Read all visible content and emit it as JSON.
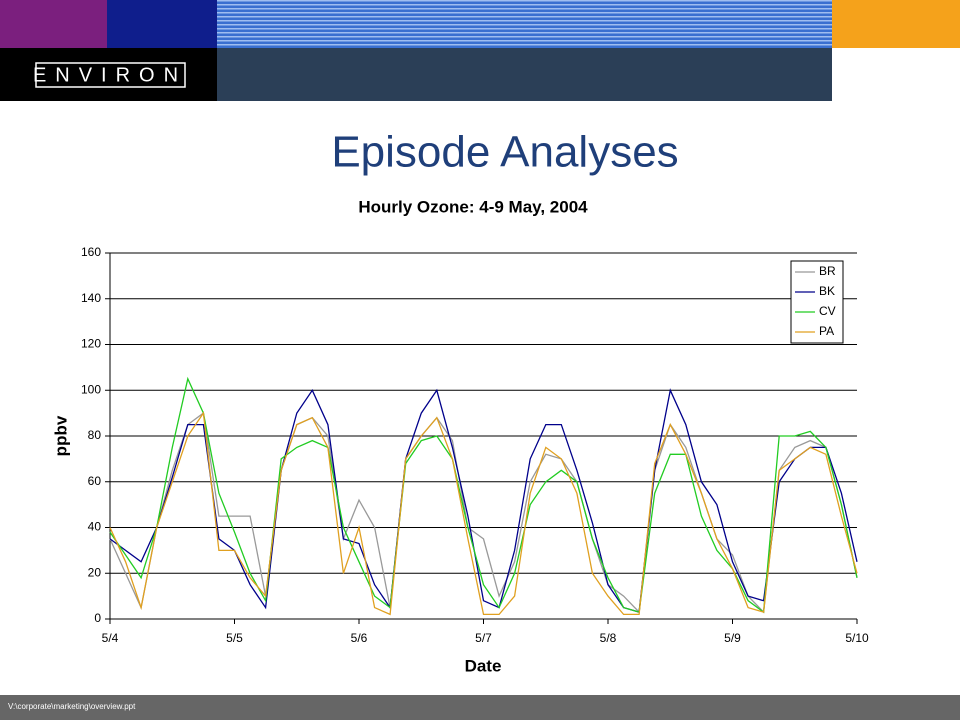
{
  "header": {
    "logo": "ENVIRON"
  },
  "slide_title": "Episode Analyses",
  "footer": "V:\\corporate\\marketing\\overview.ppt",
  "chart_data": {
    "type": "line",
    "title": "Hourly Ozone: 4-9 May, 2004",
    "x_label": "Date",
    "y_label": "ppbv",
    "x": [
      0,
      3,
      6,
      9,
      12,
      15,
      18,
      21,
      24,
      27,
      30,
      33,
      36,
      39,
      42,
      45,
      48,
      51,
      54,
      57,
      60,
      63,
      66,
      69,
      72,
      75,
      78,
      81,
      84,
      87,
      90,
      93,
      96,
      99,
      102,
      105,
      108,
      111,
      114,
      117,
      120,
      123,
      126,
      129,
      132,
      135,
      138,
      141,
      144
    ],
    "series": [
      {
        "name": "BR",
        "color": "#999999",
        "values": [
          35,
          20,
          5,
          40,
          65,
          85,
          90,
          45,
          45,
          45,
          10,
          65,
          85,
          88,
          80,
          35,
          52,
          40,
          5,
          70,
          80,
          88,
          78,
          40,
          35,
          10,
          25,
          60,
          72,
          70,
          60,
          35,
          15,
          10,
          3,
          65,
          85,
          75,
          55,
          35,
          28,
          10,
          3,
          65,
          75,
          78,
          75,
          50,
          18
        ]
      },
      {
        "name": "BK",
        "color": "#00008b",
        "values": [
          35,
          30,
          25,
          40,
          62,
          85,
          85,
          35,
          30,
          15,
          5,
          65,
          90,
          100,
          85,
          35,
          33,
          15,
          5,
          70,
          90,
          100,
          75,
          45,
          8,
          5,
          30,
          70,
          85,
          85,
          65,
          42,
          15,
          5,
          3,
          65,
          100,
          85,
          60,
          50,
          25,
          10,
          8,
          60,
          70,
          75,
          75,
          55,
          25
        ]
      },
      {
        "name": "CV",
        "color": "#22cc22",
        "values": [
          38,
          28,
          18,
          40,
          75,
          105,
          90,
          55,
          38,
          20,
          8,
          70,
          75,
          78,
          75,
          40,
          25,
          10,
          5,
          68,
          78,
          80,
          70,
          40,
          15,
          5,
          20,
          50,
          60,
          65,
          60,
          35,
          18,
          5,
          3,
          55,
          72,
          72,
          45,
          30,
          22,
          8,
          3,
          80,
          80,
          82,
          75,
          50,
          18
        ]
      },
      {
        "name": "PA",
        "color": "#e0a020",
        "values": [
          40,
          25,
          5,
          40,
          60,
          80,
          90,
          30,
          30,
          18,
          10,
          65,
          85,
          88,
          75,
          20,
          40,
          5,
          2,
          70,
          80,
          88,
          70,
          35,
          2,
          2,
          10,
          55,
          75,
          70,
          55,
          20,
          10,
          2,
          2,
          68,
          85,
          72,
          55,
          35,
          22,
          5,
          3,
          65,
          70,
          75,
          72,
          45,
          20
        ]
      }
    ],
    "xlim": [
      0,
      144
    ],
    "xticks": [
      {
        "value": 0,
        "label": "5/4"
      },
      {
        "value": 24,
        "label": "5/5"
      },
      {
        "value": 48,
        "label": "5/6"
      },
      {
        "value": 72,
        "label": "5/7"
      },
      {
        "value": 96,
        "label": "5/8"
      },
      {
        "value": 120,
        "label": "5/9"
      },
      {
        "value": 144,
        "label": "5/10"
      }
    ],
    "ylim": [
      0,
      160
    ],
    "yticks": [
      0,
      20,
      40,
      60,
      80,
      100,
      120,
      140,
      160
    ],
    "grid": true,
    "legend": "upper right"
  }
}
